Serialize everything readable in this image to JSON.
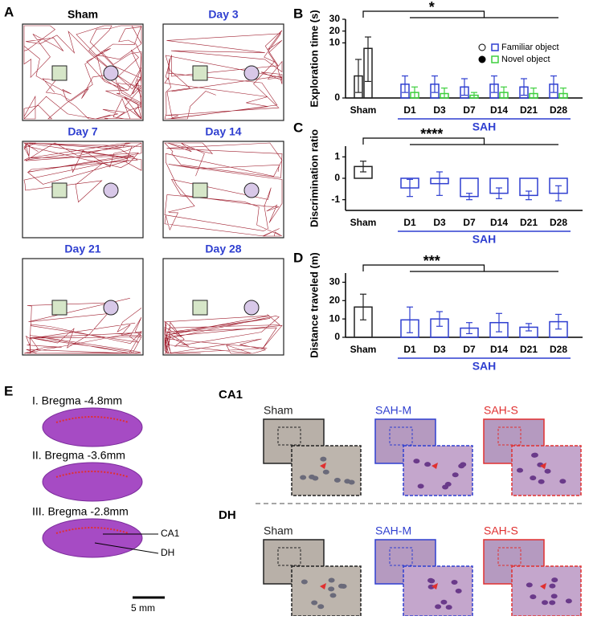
{
  "panel_labels": [
    "A",
    "B",
    "C",
    "D",
    "E"
  ],
  "tracks": [
    "Sham",
    "Day 3",
    "Day 7",
    "Day 14",
    "Day 21",
    "Day 28"
  ],
  "brain_sections": [
    "I. Bregma -4.8mm",
    "II. Bregma -3.6mm",
    "III. Bregma -2.8mm"
  ],
  "brain_annotations": [
    "CA1",
    "DH"
  ],
  "scale_bar": "5 mm",
  "histology": {
    "rows": [
      "CA1",
      "DH"
    ],
    "groups": [
      "Sham",
      "SAH-M",
      "SAH-S"
    ]
  },
  "chart_data": [
    {
      "type": "bar",
      "y_label": "Exploration time (s)",
      "significance": "*",
      "group_label": "SAH",
      "categories": [
        "Sham",
        "D1",
        "D3",
        "D7",
        "D14",
        "D21",
        "D28"
      ],
      "first_category_color": "#222222",
      "series": [
        {
          "name": "Familiar object",
          "color": "#2f3fd0",
          "values": [
            4,
            2.5,
            2.5,
            2,
            2.5,
            2,
            2.5
          ],
          "errors": [
            3,
            1.5,
            1.5,
            1.5,
            1.5,
            1.5,
            1.5
          ]
        },
        {
          "name": "Novel object",
          "color": "#3ecf3e",
          "values": [
            9,
            1,
            0.8,
            0.5,
            1,
            0.8,
            0.8
          ],
          "errors": [
            6,
            1,
            1,
            0.5,
            1,
            1,
            1
          ]
        }
      ],
      "ylim": [
        0,
        30
      ],
      "ybreak": 10,
      "yticks": [
        0,
        10,
        20,
        30
      ]
    },
    {
      "type": "bar",
      "y_label": "Discrimination ratio",
      "significance": "****",
      "group_label": "SAH",
      "categories": [
        "Sham",
        "D1",
        "D3",
        "D7",
        "D14",
        "D21",
        "D28"
      ],
      "first_category_color": "#222222",
      "color": "#2f3fd0",
      "values": [
        0.55,
        -0.45,
        -0.25,
        -0.85,
        -0.7,
        -0.8,
        -0.7
      ],
      "errors": [
        0.25,
        0.4,
        0.55,
        0.15,
        0.25,
        0.2,
        0.35
      ],
      "ylim": [
        -1.5,
        1.5
      ],
      "yticks": [
        -1,
        0,
        1
      ]
    },
    {
      "type": "bar",
      "y_label": "Distance traveled (m)",
      "significance": "***",
      "group_label": "SAH",
      "categories": [
        "Sham",
        "D1",
        "D3",
        "D7",
        "D14",
        "D21",
        "D28"
      ],
      "first_category_color": "#222222",
      "color": "#2f3fd0",
      "values": [
        16.5,
        9.5,
        10,
        5,
        8,
        5.5,
        8.5
      ],
      "errors": [
        7,
        7,
        4,
        3,
        5,
        2,
        4
      ],
      "ylim": [
        0,
        35
      ],
      "yticks": [
        0,
        10,
        20,
        30
      ]
    }
  ]
}
